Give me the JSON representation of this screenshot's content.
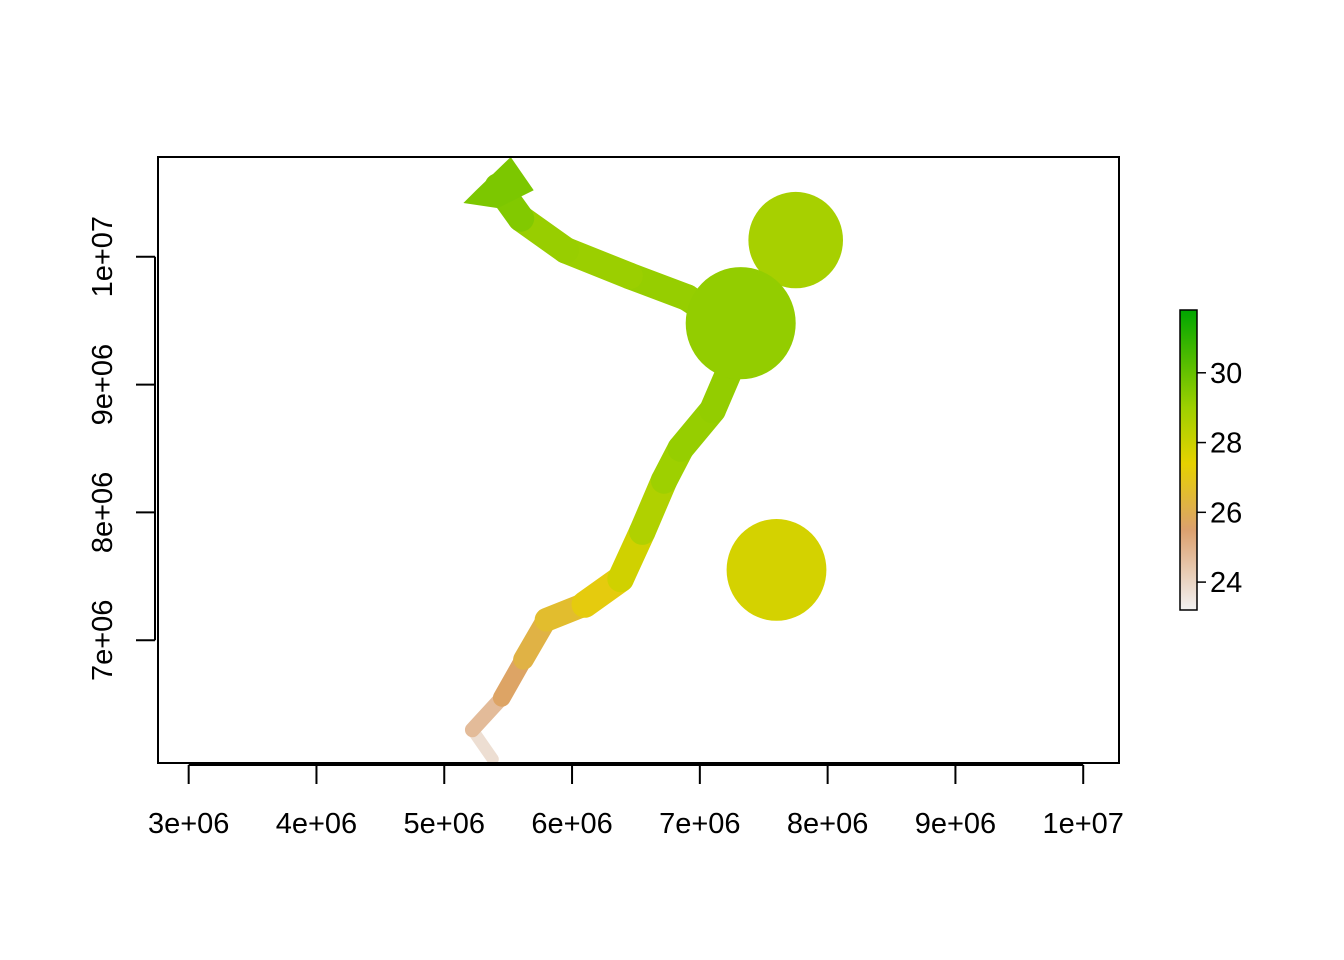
{
  "chart_data": {
    "type": "heatmap",
    "title": "",
    "xlabel": "",
    "ylabel": "",
    "xlim": [
      2760000,
      10280000
    ],
    "ylim": [
      6040000,
      10780000
    ],
    "x_ticks": [
      {
        "value": 3000000,
        "label": "3e+06"
      },
      {
        "value": 4000000,
        "label": "4e+06"
      },
      {
        "value": 5000000,
        "label": "5e+06"
      },
      {
        "value": 6000000,
        "label": "6e+06"
      },
      {
        "value": 7000000,
        "label": "7e+06"
      },
      {
        "value": 8000000,
        "label": "8e+06"
      },
      {
        "value": 9000000,
        "label": "9e+06"
      },
      {
        "value": 10000000,
        "label": "1e+07"
      }
    ],
    "y_ticks": [
      {
        "value": 7000000,
        "label": "7e+06"
      },
      {
        "value": 8000000,
        "label": "8e+06"
      },
      {
        "value": 9000000,
        "label": "9e+06"
      },
      {
        "value": 10000000,
        "label": "1e+07"
      }
    ],
    "legend": {
      "placement": "right",
      "range": [
        23.2,
        31.8
      ],
      "ticks": [
        {
          "value": 24,
          "label": "24"
        },
        {
          "value": 26,
          "label": "26"
        },
        {
          "value": 28,
          "label": "28"
        },
        {
          "value": 30,
          "label": "30"
        }
      ],
      "color_stops": [
        {
          "value": 23.2,
          "color": "#f2f2f2"
        },
        {
          "value": 25.5,
          "color": "#dca06e"
        },
        {
          "value": 27.4,
          "color": "#e6d200"
        },
        {
          "value": 29.0,
          "color": "#9ed000"
        },
        {
          "value": 31.8,
          "color": "#00a600"
        }
      ]
    },
    "river_path": [
      {
        "x": 5380000,
        "y": 6070000,
        "v": 23.3
      },
      {
        "x": 5220000,
        "y": 6300000,
        "v": 24.2
      },
      {
        "x": 5450000,
        "y": 6550000,
        "v": 25.3
      },
      {
        "x": 5620000,
        "y": 6850000,
        "v": 26.0
      },
      {
        "x": 5800000,
        "y": 7160000,
        "v": 26.4
      },
      {
        "x": 6100000,
        "y": 7280000,
        "v": 26.8
      },
      {
        "x": 6380000,
        "y": 7480000,
        "v": 27.5
      },
      {
        "x": 6550000,
        "y": 7850000,
        "v": 28.3
      },
      {
        "x": 6720000,
        "y": 8250000,
        "v": 28.9
      },
      {
        "x": 6850000,
        "y": 8500000,
        "v": 29.1
      },
      {
        "x": 7100000,
        "y": 8800000,
        "v": 29.2
      },
      {
        "x": 7250000,
        "y": 9150000,
        "v": 29.2
      },
      {
        "x": 7250000,
        "y": 9450000,
        "v": 29.3
      },
      {
        "x": 6900000,
        "y": 9680000,
        "v": 29.2
      },
      {
        "x": 6450000,
        "y": 9850000,
        "v": 29.1
      },
      {
        "x": 5950000,
        "y": 10050000,
        "v": 29.0
      },
      {
        "x": 5600000,
        "y": 10300000,
        "v": 29.2
      },
      {
        "x": 5420000,
        "y": 10550000,
        "v": 29.8
      }
    ],
    "north_blob": [
      {
        "x": 5250000,
        "y": 10520000
      },
      {
        "x": 5520000,
        "y": 10780000
      },
      {
        "x": 5700000,
        "y": 10520000
      },
      {
        "x": 5420000,
        "y": 10380000
      },
      {
        "x": 5150000,
        "y": 10420000
      }
    ],
    "discs": [
      {
        "cx": 7750000,
        "cy": 10130000,
        "r": 370000,
        "v": 28.8
      },
      {
        "cx": 7320000,
        "cy": 9480000,
        "r": 430000,
        "v": 29.2
      },
      {
        "cx": 7600000,
        "cy": 7550000,
        "r": 390000,
        "v": 27.8
      }
    ]
  }
}
